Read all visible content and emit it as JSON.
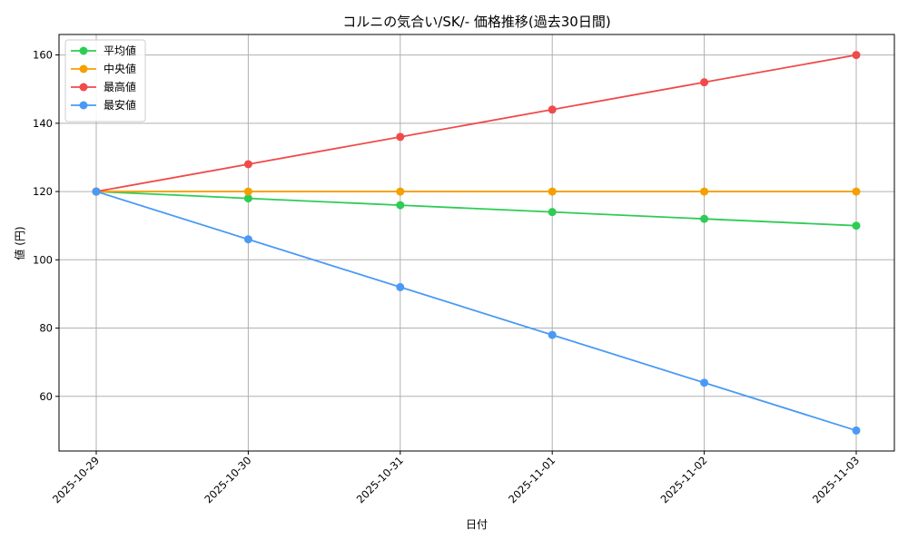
{
  "chart_data": {
    "type": "line",
    "title": "コルニの気合い/SK/- 価格推移(過去30日間)",
    "xlabel": "日付",
    "ylabel": "値 (円)",
    "categories": [
      "2025-10-29",
      "2025-10-30",
      "2025-10-31",
      "2025-11-01",
      "2025-11-02",
      "2025-11-03"
    ],
    "ylim": [
      44,
      166
    ],
    "yticks": [
      60,
      80,
      100,
      120,
      140,
      160
    ],
    "grid": true,
    "legend_position": "top-left",
    "series": [
      {
        "name": "平均値",
        "color": "#2ecc55",
        "values": [
          120,
          118,
          116,
          114,
          112,
          110
        ]
      },
      {
        "name": "中央値",
        "color": "#f5a000",
        "values": [
          120,
          120,
          120,
          120,
          120,
          120
        ]
      },
      {
        "name": "最高値",
        "color": "#f04a4a",
        "values": [
          120,
          128,
          136,
          144,
          152,
          160
        ]
      },
      {
        "name": "最安値",
        "color": "#4a9af5",
        "values": [
          120,
          106,
          92,
          78,
          64,
          50
        ]
      }
    ]
  }
}
